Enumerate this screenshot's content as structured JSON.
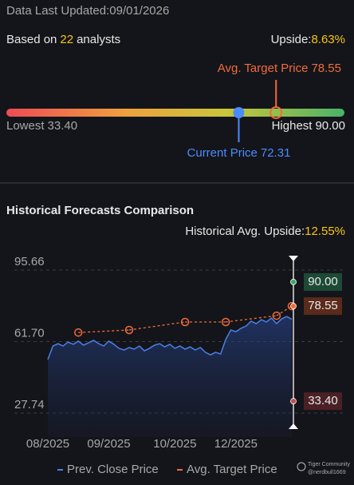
{
  "header": {
    "updated_label": "Data Last Updated:",
    "updated_date": "09/01/2026",
    "based_on": "Based on",
    "analysts": 22,
    "analysts_word": "analysts",
    "upside_label": "Upside:",
    "upside": "8.63%"
  },
  "gauge": {
    "lowest": {
      "label": "Lowest",
      "value": 33.4,
      "value_label": "33.40"
    },
    "highest": {
      "label": "Highest",
      "value": 90,
      "value_label": "90.00"
    },
    "avg_target": {
      "label": "Avg. Target Price",
      "value": 78.55,
      "value_label": "78.55",
      "color": "#f26b3a"
    },
    "current": {
      "label": "Current Price",
      "value": 72.31,
      "value_label": "72.31",
      "color": "#4a8cff"
    }
  },
  "chart_data": {
    "type": "line",
    "title": "Historical Forecasts Comparison",
    "subtitle_label": "Historical Avg. Upside:",
    "subtitle_value": "12.55%",
    "categories": [
      "08/2025",
      null,
      null,
      null,
      null,
      null,
      null,
      null,
      null,
      null,
      null,
      null,
      "09/2025",
      null,
      null,
      null,
      null,
      null,
      null,
      null,
      null,
      null,
      null,
      null,
      null,
      "10/2025",
      null,
      null,
      null,
      null,
      null,
      null,
      null,
      null,
      null,
      null,
      null,
      "12/2025",
      null,
      null,
      null,
      null,
      null,
      null,
      null,
      null,
      null,
      null,
      null
    ],
    "series": [
      {
        "name": "Prev. Close Price",
        "color": "#4a7fe8",
        "values": [
          53.2,
          59.6,
          60.7,
          59.6,
          61.5,
          60.4,
          61.9,
          60.0,
          61.1,
          62.3,
          60.7,
          59.6,
          61.9,
          60.4,
          58.5,
          57.7,
          58.9,
          58.1,
          59.6,
          57.3,
          58.5,
          60.0,
          60.7,
          59.2,
          60.4,
          58.5,
          59.6,
          58.1,
          59.2,
          57.7,
          58.9,
          56.6,
          55.4,
          56.6,
          55.8,
          62.7,
          67.2,
          66.4,
          68.0,
          69.1,
          71.4,
          70.2,
          72.1,
          71.0,
          72.9,
          70.2,
          72.5,
          73.6,
          72.31
        ]
      },
      {
        "name": "Avg. Target Price",
        "color": "#f26b3a",
        "values": [
          null,
          null,
          null,
          null,
          null,
          null,
          66.0,
          null,
          null,
          null,
          null,
          null,
          null,
          null,
          null,
          null,
          67.2,
          null,
          null,
          null,
          null,
          null,
          null,
          null,
          null,
          null,
          null,
          71.0,
          null,
          null,
          null,
          null,
          null,
          null,
          null,
          71.0,
          null,
          null,
          null,
          null,
          null,
          null,
          null,
          null,
          null,
          74.0,
          null,
          null,
          78.55
        ]
      }
    ],
    "ylim": [
      27.74,
      95.66
    ],
    "yticks": [
      27.74,
      {
        "value": 61.7,
        "label": "61.70"
      },
      95.66
    ],
    "grid": true,
    "markers": [
      {
        "value": 90,
        "value_label": "90.00",
        "color": "#3ea66b",
        "box": "#1d4a35",
        "text": "#ffffff"
      },
      {
        "value": 78.55,
        "value_label": "78.55",
        "color": "#f26b3a",
        "box": "#5a2a1a",
        "text": "#f07a4a"
      },
      {
        "value": 33.4,
        "value_label": "33.40",
        "color": "#c0504d",
        "box": "#4a2025",
        "text": "#e8c8c8"
      }
    ]
  },
  "watermark": {
    "brand": "Tiger Community",
    "user": "@nerdbull1669"
  }
}
